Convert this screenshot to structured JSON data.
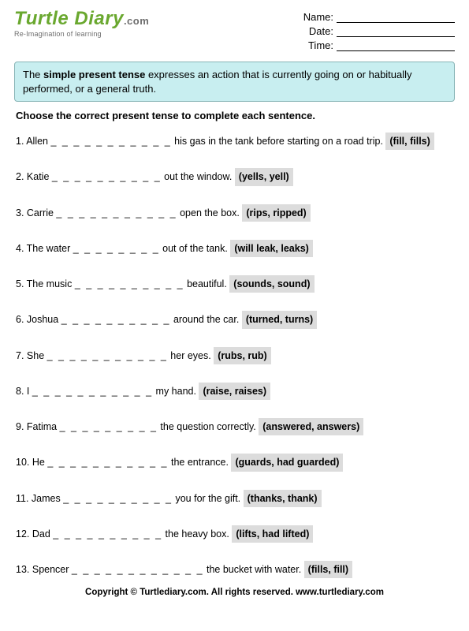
{
  "logo": {
    "text": "Turtle Diary",
    "dotcom": ".com",
    "tagline": "Re-Imagination of learning"
  },
  "fields": {
    "name": "Name:",
    "date": "Date:",
    "time": "Time:"
  },
  "infobox": {
    "pre": "The ",
    "term": "simple present tense",
    "post": " expresses an action that is currently going on or habitually performed, or a general truth."
  },
  "instructions": "Choose the correct present tense to complete each sentence.",
  "questions": [
    {
      "n": "1.",
      "before": "Allen ",
      "blank": "_ _ _ _ _ _ _ _ _ _ _",
      "after": " his gas in the tank before starting on a road trip.  ",
      "choices": "(fill, fills)"
    },
    {
      "n": "2.",
      "before": "Katie ",
      "blank": "_ _ _ _ _ _ _ _ _ _",
      "after": " out the window.  ",
      "choices": "(yells, yell)"
    },
    {
      "n": "3.",
      "before": "Carrie ",
      "blank": "_ _ _ _ _ _ _ _ _ _ _",
      "after": " open the box.  ",
      "choices": "(rips, ripped)"
    },
    {
      "n": "4.",
      "before": "The water ",
      "blank": "_ _ _ _ _ _ _ _",
      "after": " out of the tank.  ",
      "choices": "(will leak, leaks)"
    },
    {
      "n": "5.",
      "before": "The music ",
      "blank": "_ _ _ _ _ _ _ _ _ _",
      "after": " beautiful. ",
      "choices": "(sounds, sound)"
    },
    {
      "n": "6.",
      "before": "Joshua ",
      "blank": "_ _ _ _ _ _ _ _ _ _",
      "after": " around the car.  ",
      "choices": "(turned, turns)"
    },
    {
      "n": "7.",
      "before": "She ",
      "blank": "_ _ _ _ _ _ _ _ _ _ _",
      "after": " her eyes.  ",
      "choices": "(rubs, rub)"
    },
    {
      "n": "8.",
      "before": "I ",
      "blank": "_ _ _ _ _ _ _ _ _ _ _",
      "after": " my hand.  ",
      "choices": "(raise, raises)"
    },
    {
      "n": "9.",
      "before": "Fatima ",
      "blank": "_ _ _ _ _ _ _ _ _",
      "after": " the question correctly.  ",
      "choices": "(answered, answers)"
    },
    {
      "n": "10.",
      "before": "He ",
      "blank": "_ _ _ _ _ _ _ _ _ _ _",
      "after": " the entrance.  ",
      "choices": "(guards, had guarded)"
    },
    {
      "n": "11.",
      "before": "James ",
      "blank": "_ _ _ _ _ _ _ _ _ _",
      "after": " you for the gift.  ",
      "choices": "(thanks, thank)"
    },
    {
      "n": "12.",
      "before": "Dad ",
      "blank": "_ _ _ _ _ _ _ _ _ _",
      "after": " the heavy box. ",
      "choices": "(lifts, had lifted)"
    },
    {
      "n": "13.",
      "before": "Spencer ",
      "blank": "_ _ _ _ _ _ _ _ _ _ _ _",
      "after": " the bucket with water.  ",
      "choices": "(fills, fill)"
    }
  ],
  "footer": "Copyright © Turtlediary.com. All rights reserved. www.turtlediary.com"
}
